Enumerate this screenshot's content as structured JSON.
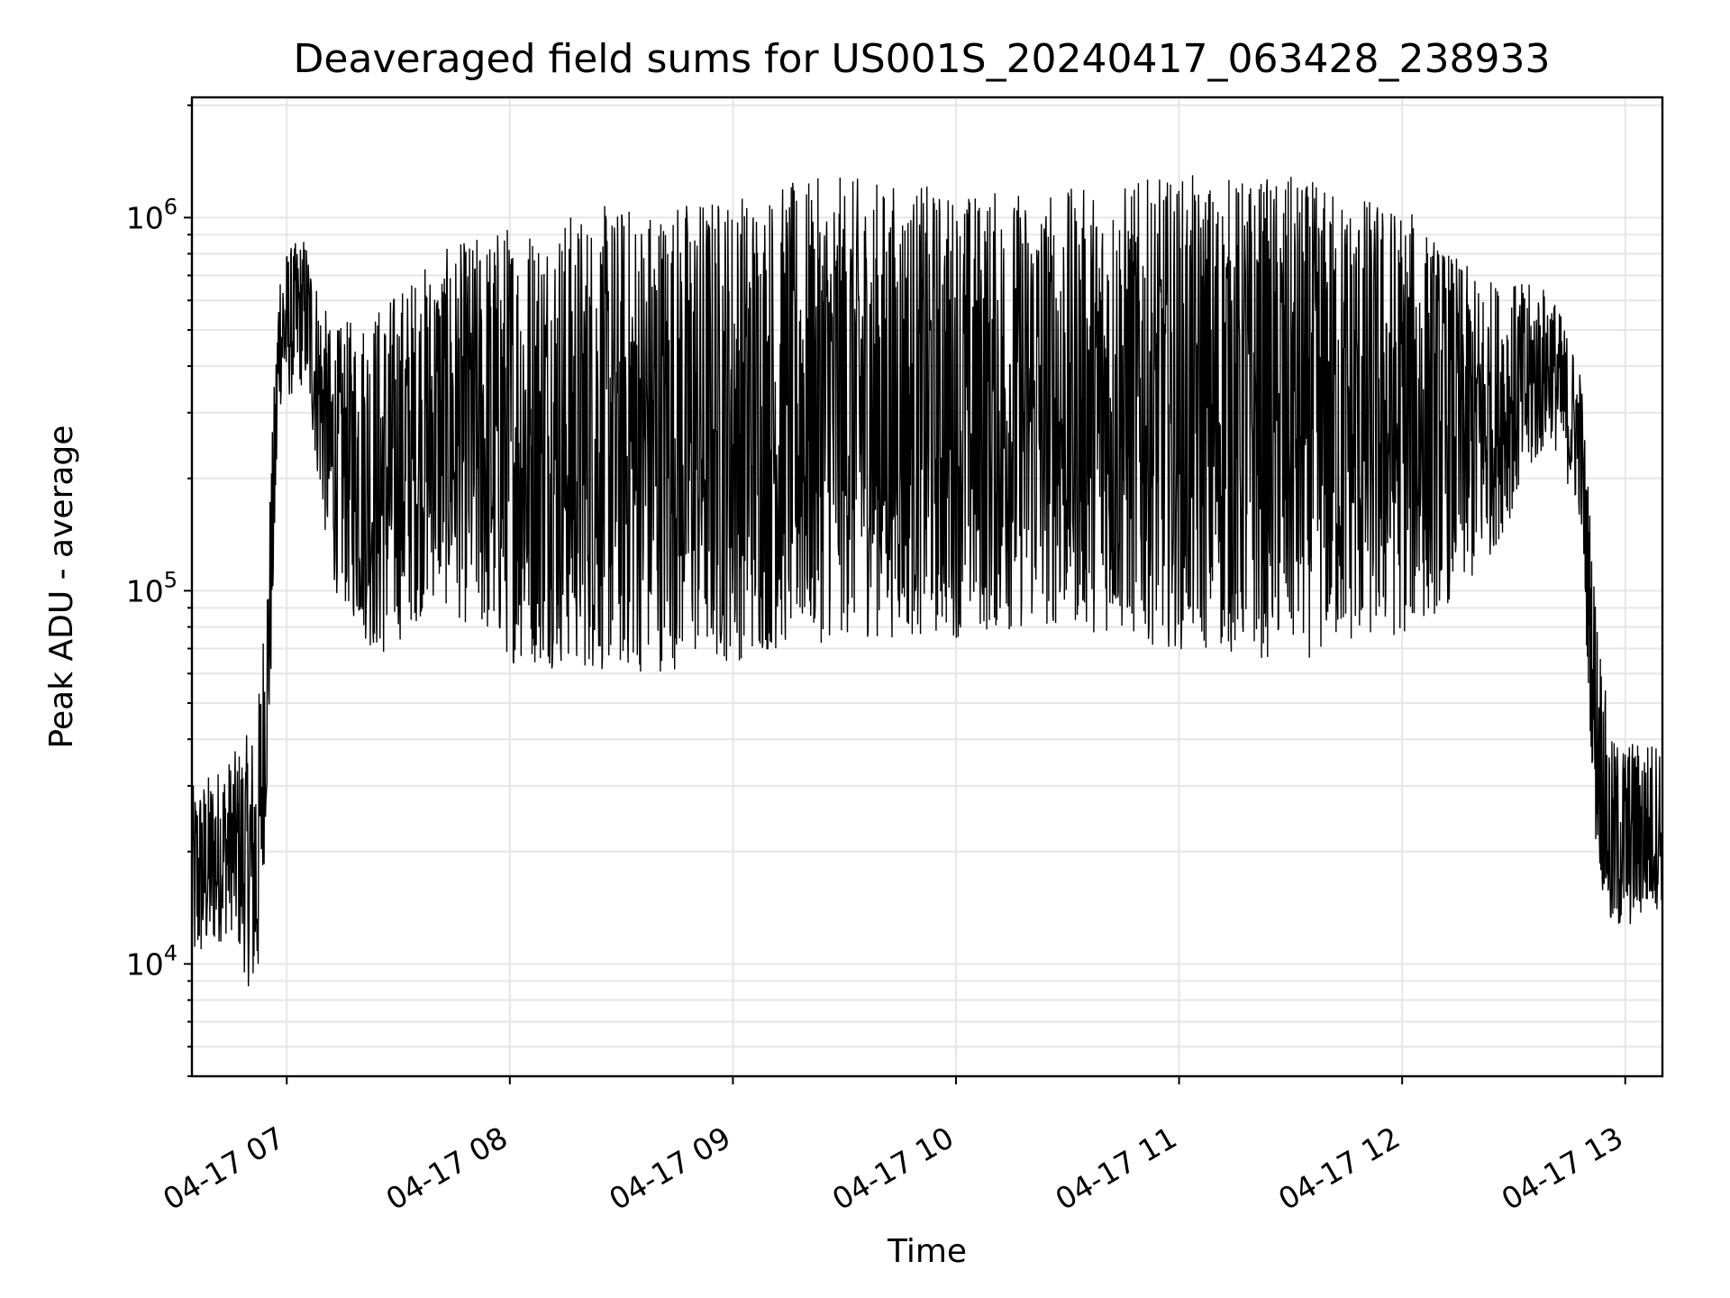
{
  "chart_data": {
    "type": "line",
    "title": "Deaveraged field sums for US001S_20240417_063428_238933",
    "xlabel": "Time",
    "ylabel": "Peak ADU - average",
    "yscale": "log",
    "xlim": [
      "2024-04-17T06:34:30",
      "2024-04-17T13:10:00"
    ],
    "ylim": [
      5000,
      2100000
    ],
    "grid": true,
    "x_ticks": [
      {
        "value": "2024-04-17T07:00:00",
        "label": "04-17 07"
      },
      {
        "value": "2024-04-17T08:00:00",
        "label": "04-17 08"
      },
      {
        "value": "2024-04-17T09:00:00",
        "label": "04-17 09"
      },
      {
        "value": "2024-04-17T10:00:00",
        "label": "04-17 10"
      },
      {
        "value": "2024-04-17T11:00:00",
        "label": "04-17 11"
      },
      {
        "value": "2024-04-17T12:00:00",
        "label": "04-17 12"
      },
      {
        "value": "2024-04-17T13:00:00",
        "label": "04-17 13"
      }
    ],
    "y_ticks": [
      {
        "value": 10000,
        "base": "10",
        "exp": "4"
      },
      {
        "value": 100000,
        "base": "10",
        "exp": "5"
      },
      {
        "value": 1000000,
        "base": "10",
        "exp": "6"
      }
    ],
    "series": [
      {
        "color": "#000000",
        "envelope": [
          {
            "t": "2024-04-17T06:34:30",
            "low": 9000,
            "high": 30000
          },
          {
            "t": "2024-04-17T06:45:00",
            "low": 12000,
            "high": 36000
          },
          {
            "t": "2024-04-17T06:52:00",
            "low": 7000,
            "high": 45000
          },
          {
            "t": "2024-04-17T06:55:00",
            "low": 30000,
            "high": 140000
          },
          {
            "t": "2024-04-17T06:58:00",
            "low": 300000,
            "high": 800000
          },
          {
            "t": "2024-04-17T07:05:00",
            "low": 350000,
            "high": 900000
          },
          {
            "t": "2024-04-17T07:12:00",
            "low": 100000,
            "high": 500000
          },
          {
            "t": "2024-04-17T07:25:00",
            "low": 60000,
            "high": 600000
          },
          {
            "t": "2024-04-17T07:40:00",
            "low": 90000,
            "high": 800000
          },
          {
            "t": "2024-04-17T08:00:00",
            "low": 60000,
            "high": 1000000
          },
          {
            "t": "2024-04-17T08:30:00",
            "low": 55000,
            "high": 1100000
          },
          {
            "t": "2024-04-17T09:00:00",
            "low": 60000,
            "high": 1200000
          },
          {
            "t": "2024-04-17T09:30:00",
            "low": 70000,
            "high": 1300000
          },
          {
            "t": "2024-04-17T10:00:00",
            "low": 70000,
            "high": 1200000
          },
          {
            "t": "2024-04-17T10:30:00",
            "low": 75000,
            "high": 1200000
          },
          {
            "t": "2024-04-17T11:00:00",
            "low": 65000,
            "high": 1300000
          },
          {
            "t": "2024-04-17T11:30:00",
            "low": 60000,
            "high": 1300000
          },
          {
            "t": "2024-04-17T12:00:00",
            "low": 70000,
            "high": 1100000
          },
          {
            "t": "2024-04-17T12:20:00",
            "low": 100000,
            "high": 700000
          },
          {
            "t": "2024-04-17T12:40:00",
            "low": 250000,
            "high": 650000
          },
          {
            "t": "2024-04-17T12:48:00",
            "low": 150000,
            "high": 400000
          },
          {
            "t": "2024-04-17T12:52:00",
            "low": 20000,
            "high": 100000
          },
          {
            "t": "2024-04-17T12:56:00",
            "low": 11000,
            "high": 40000
          },
          {
            "t": "2024-04-17T13:10:00",
            "low": 14000,
            "high": 40000
          }
        ]
      }
    ]
  }
}
